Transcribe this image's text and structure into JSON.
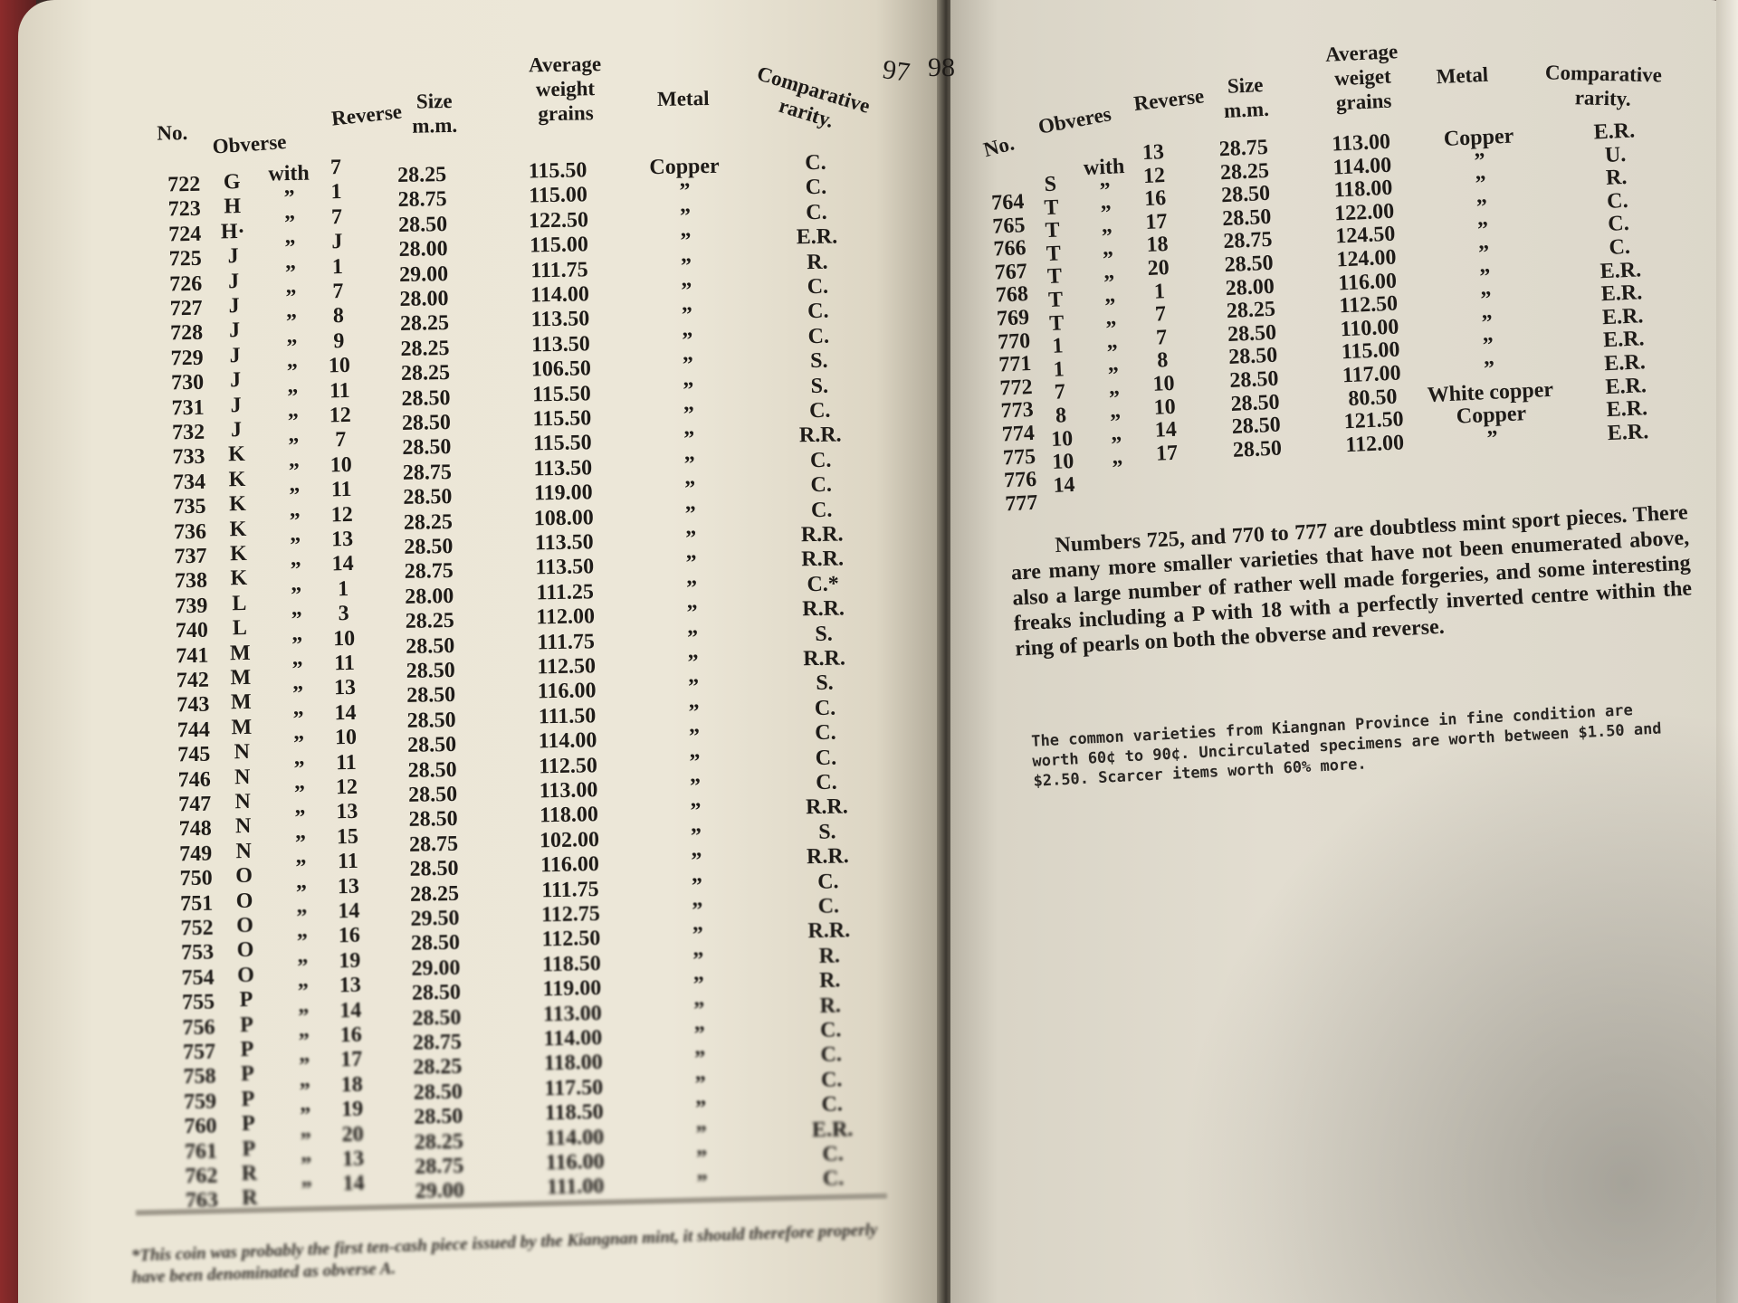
{
  "left_page": {
    "page_number": "97",
    "headers": {
      "no": "No.",
      "obverse": "Obverse",
      "reverse": "Reverse",
      "size": "Size\nm.m.",
      "weight": "Average\nweight\ngrains",
      "metal": "Metal",
      "rarity": "Comparative\nrarity."
    },
    "rows": [
      [
        "722",
        "G",
        "with",
        "7",
        "28.25",
        "115.50",
        "Copper",
        "C."
      ],
      [
        "723",
        "H",
        "”",
        "1",
        "28.75",
        "115.00",
        "”",
        "C."
      ],
      [
        "724",
        "H·",
        "”",
        "7",
        "28.50",
        "122.50",
        "”",
        "C."
      ],
      [
        "725",
        "J",
        "”",
        "J",
        "28.00",
        "115.00",
        "”",
        "E.R."
      ],
      [
        "726",
        "J",
        "”",
        "1",
        "29.00",
        "111.75",
        "”",
        "R."
      ],
      [
        "727",
        "J",
        "”",
        "7",
        "28.00",
        "114.00",
        "”",
        "C."
      ],
      [
        "728",
        "J",
        "”",
        "8",
        "28.25",
        "113.50",
        "”",
        "C."
      ],
      [
        "729",
        "J",
        "”",
        "9",
        "28.25",
        "113.50",
        "”",
        "C."
      ],
      [
        "730",
        "J",
        "”",
        "10",
        "28.25",
        "106.50",
        "”",
        "S."
      ],
      [
        "731",
        "J",
        "”",
        "11",
        "28.50",
        "115.50",
        "”",
        "S."
      ],
      [
        "732",
        "J",
        "”",
        "12",
        "28.50",
        "115.50",
        "”",
        "C."
      ],
      [
        "733",
        "K",
        "”",
        "7",
        "28.50",
        "115.50",
        "”",
        "R.R."
      ],
      [
        "734",
        "K",
        "”",
        "10",
        "28.75",
        "113.50",
        "”",
        "C."
      ],
      [
        "735",
        "K",
        "”",
        "11",
        "28.50",
        "119.00",
        "”",
        "C."
      ],
      [
        "736",
        "K",
        "”",
        "12",
        "28.25",
        "108.00",
        "”",
        "C."
      ],
      [
        "737",
        "K",
        "”",
        "13",
        "28.50",
        "113.50",
        "”",
        "R.R."
      ],
      [
        "738",
        "K",
        "”",
        "14",
        "28.75",
        "113.50",
        "”",
        "R.R."
      ],
      [
        "739",
        "L",
        "”",
        "1",
        "28.00",
        "111.25",
        "”",
        "C.*"
      ],
      [
        "740",
        "L",
        "”",
        "3",
        "28.25",
        "112.00",
        "”",
        "R.R."
      ],
      [
        "741",
        "M",
        "”",
        "10",
        "28.50",
        "111.75",
        "”",
        "S."
      ],
      [
        "742",
        "M",
        "”",
        "11",
        "28.50",
        "112.50",
        "”",
        "R.R."
      ],
      [
        "743",
        "M",
        "”",
        "13",
        "28.50",
        "116.00",
        "”",
        "S."
      ],
      [
        "744",
        "M",
        "”",
        "14",
        "28.50",
        "111.50",
        "”",
        "C."
      ],
      [
        "745",
        "N",
        "”",
        "10",
        "28.50",
        "114.00",
        "”",
        "C."
      ],
      [
        "746",
        "N",
        "”",
        "11",
        "28.50",
        "112.50",
        "”",
        "C."
      ],
      [
        "747",
        "N",
        "”",
        "12",
        "28.50",
        "113.00",
        "”",
        "C."
      ],
      [
        "748",
        "N",
        "”",
        "13",
        "28.50",
        "118.00",
        "”",
        "R.R."
      ],
      [
        "749",
        "N",
        "”",
        "15",
        "28.75",
        "102.00",
        "”",
        "S."
      ],
      [
        "750",
        "O",
        "”",
        "11",
        "28.50",
        "116.00",
        "”",
        "R.R."
      ],
      [
        "751",
        "O",
        "”",
        "13",
        "28.25",
        "111.75",
        "”",
        "C."
      ],
      [
        "752",
        "O",
        "”",
        "14",
        "29.50",
        "112.75",
        "”",
        "C."
      ],
      [
        "753",
        "O",
        "”",
        "16",
        "28.50",
        "112.50",
        "”",
        "R.R."
      ],
      [
        "754",
        "O",
        "”",
        "19",
        "29.00",
        "118.50",
        "”",
        "R."
      ],
      [
        "755",
        "P",
        "”",
        "13",
        "28.50",
        "119.00",
        "”",
        "R."
      ],
      [
        "756",
        "P",
        "”",
        "14",
        "28.50",
        "113.00",
        "”",
        "R."
      ],
      [
        "757",
        "P",
        "”",
        "16",
        "28.75",
        "114.00",
        "”",
        "C."
      ],
      [
        "758",
        "P",
        "”",
        "17",
        "28.25",
        "118.00",
        "”",
        "C."
      ],
      [
        "759",
        "P",
        "”",
        "18",
        "28.50",
        "117.50",
        "”",
        "C."
      ],
      [
        "760",
        "P",
        "”",
        "19",
        "28.50",
        "118.50",
        "”",
        "C."
      ],
      [
        "761",
        "P",
        "”",
        "20",
        "28.25",
        "114.00",
        "”",
        "E.R."
      ],
      [
        "762",
        "R",
        "”",
        "13",
        "28.75",
        "116.00",
        "”",
        "C."
      ],
      [
        "763",
        "R",
        "”",
        "14",
        "29.00",
        "111.00",
        "”",
        "C."
      ]
    ],
    "footnote": "*This coin was probably the first ten-cash piece issued by the Kiangnan mint, it should therefore properly have been denominated as obverse A."
  },
  "right_page": {
    "page_number": "98",
    "headers": {
      "no": "No.",
      "obverse": "Obveres",
      "reverse": "Reverse",
      "size": "Size\nm.m.",
      "weight": "Average\nweiget\ngrains",
      "metal": "Metal",
      "rarity": "Comparative\nrarity."
    },
    "rows": [
      [
        "764",
        "S",
        "with",
        "13",
        "28.75",
        "113.00",
        "Copper",
        "E.R."
      ],
      [
        "765",
        "T",
        "”",
        "12",
        "28.25",
        "114.00",
        "”",
        "U."
      ],
      [
        "766",
        "T",
        "”",
        "16",
        "28.50",
        "118.00",
        "”",
        "R."
      ],
      [
        "767",
        "T",
        "”",
        "17",
        "28.50",
        "122.00",
        "”",
        "C."
      ],
      [
        "768",
        "T",
        "”",
        "18",
        "28.75",
        "124.50",
        "”",
        "C."
      ],
      [
        "769",
        "T",
        "”",
        "20",
        "28.50",
        "124.00",
        "”",
        "C."
      ],
      [
        "770",
        "T",
        "”",
        "1",
        "28.00",
        "116.00",
        "”",
        "E.R."
      ],
      [
        "771",
        "1",
        "”",
        "7",
        "28.25",
        "112.50",
        "”",
        "E.R."
      ],
      [
        "772",
        "1",
        "”",
        "7",
        "28.50",
        "110.00",
        "”",
        "E.R."
      ],
      [
        "773",
        "7",
        "”",
        "8",
        "28.50",
        "115.00",
        "”",
        "E.R."
      ],
      [
        "774",
        "8",
        "”",
        "10",
        "28.50",
        "117.00",
        "”",
        "E.R."
      ],
      [
        "775",
        "10",
        "”",
        "10",
        "28.50",
        "80.50",
        "White copper",
        "E.R."
      ],
      [
        "776",
        "10",
        "”",
        "14",
        "28.50",
        "121.50",
        "Copper",
        "E.R."
      ],
      [
        "777",
        "14",
        "”",
        "17",
        "28.50",
        "112.00",
        "”",
        "E.R."
      ]
    ],
    "paragraph": "Numbers 725, and 770 to 777 are doubtless mint sport pieces. There are many more smaller varieties that have not been enumerated above, also a large number of rather well made forgeries, and some interesting freaks including a P with 18 with a perfectly inverted centre within the ring of pearls on both the obverse and reverse.",
    "price_note": "The common varieties from Kiangnan Province in fine condition are worth 60¢ to 90¢. Uncirculated specimens are worth between $1.50 and $2.50. Scarcer items worth 60% more."
  }
}
